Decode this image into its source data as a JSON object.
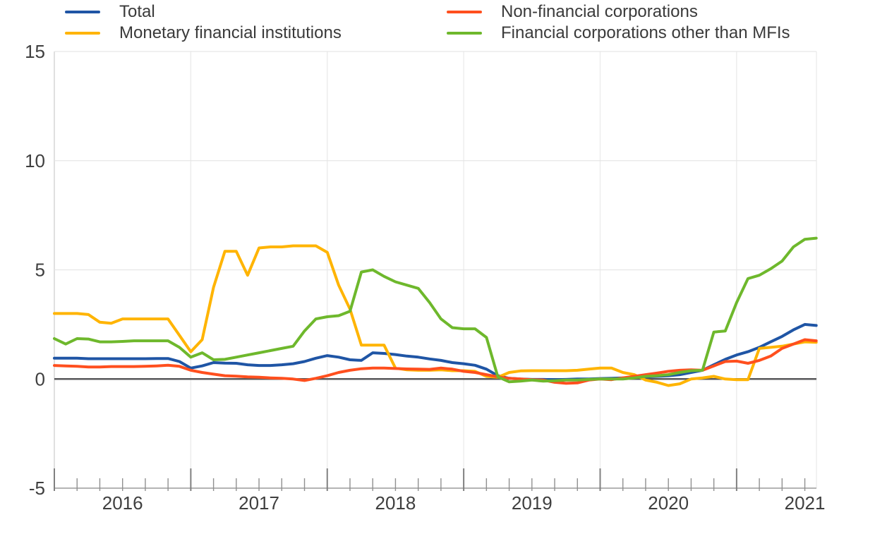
{
  "chart_data": {
    "type": "line",
    "title": "",
    "xlabel": "",
    "ylabel": "",
    "legend_position": "top",
    "grid": "horizontal-light, vertical-year-light, dark-zero-line",
    "xlim": [
      2016.0,
      2021.585
    ],
    "ylim": [
      -5,
      15
    ],
    "y_ticks": [
      15,
      10,
      5,
      0,
      -5
    ],
    "x_tick_years": [
      2016,
      2017,
      2018,
      2019,
      2020,
      2021
    ],
    "x_minor_tick_months": 2,
    "x_start_year": 2016,
    "x_step_months": 1,
    "colors": {
      "axis_line": "#b4b4b4",
      "tick": "#808080",
      "grid_light": "#e6e6e6",
      "grid_vertical": "#ececec",
      "zero_line": "#58585a",
      "text": "#3f3f3f"
    },
    "series": [
      {
        "name": "Total",
        "color": "#1f55a5",
        "values": [
          0.95,
          0.95,
          0.95,
          0.93,
          0.93,
          0.93,
          0.93,
          0.93,
          0.93,
          0.94,
          0.94,
          0.8,
          0.5,
          0.6,
          0.75,
          0.73,
          0.72,
          0.65,
          0.62,
          0.62,
          0.65,
          0.7,
          0.8,
          0.95,
          1.07,
          1.0,
          0.88,
          0.85,
          1.2,
          1.17,
          1.12,
          1.05,
          1.0,
          0.92,
          0.85,
          0.75,
          0.7,
          0.63,
          0.45,
          0.15,
          0.03,
          0.0,
          -0.02,
          -0.02,
          -0.03,
          -0.02,
          0.0,
          0.0,
          0.02,
          0.03,
          0.05,
          0.07,
          0.1,
          0.12,
          0.15,
          0.2,
          0.3,
          0.4,
          0.65,
          0.9,
          1.1,
          1.25,
          1.45,
          1.7,
          1.95,
          2.25,
          2.5,
          2.45
        ]
      },
      {
        "name": "Monetary financial institutions",
        "color": "#ffb400",
        "values": [
          3.0,
          3.0,
          3.0,
          2.95,
          2.6,
          2.55,
          2.75,
          2.75,
          2.75,
          2.75,
          2.75,
          2.0,
          1.25,
          1.8,
          4.2,
          5.85,
          5.85,
          4.75,
          6.0,
          6.05,
          6.05,
          6.1,
          6.1,
          6.1,
          5.8,
          4.3,
          3.2,
          1.55,
          1.55,
          1.55,
          0.5,
          0.42,
          0.4,
          0.4,
          0.42,
          0.38,
          0.38,
          0.35,
          0.12,
          0.08,
          0.3,
          0.37,
          0.38,
          0.38,
          0.38,
          0.38,
          0.4,
          0.45,
          0.5,
          0.5,
          0.3,
          0.2,
          -0.05,
          -0.15,
          -0.3,
          -0.22,
          0.0,
          0.05,
          0.12,
          0.0,
          -0.03,
          -0.03,
          1.4,
          1.45,
          1.5,
          1.6,
          1.7,
          1.68
        ]
      },
      {
        "name": "Non-financial corporations",
        "color": "#ff4f1e",
        "values": [
          0.62,
          0.6,
          0.58,
          0.55,
          0.55,
          0.57,
          0.57,
          0.57,
          0.58,
          0.6,
          0.63,
          0.58,
          0.4,
          0.3,
          0.22,
          0.15,
          0.13,
          0.1,
          0.08,
          0.05,
          0.03,
          0.0,
          -0.07,
          0.03,
          0.15,
          0.3,
          0.4,
          0.47,
          0.5,
          0.5,
          0.48,
          0.46,
          0.45,
          0.44,
          0.5,
          0.45,
          0.35,
          0.3,
          0.2,
          0.1,
          0.03,
          0.0,
          -0.03,
          -0.05,
          -0.15,
          -0.2,
          -0.18,
          -0.05,
          0.0,
          -0.03,
          0.05,
          0.12,
          0.2,
          0.27,
          0.35,
          0.4,
          0.42,
          0.4,
          0.6,
          0.8,
          0.82,
          0.72,
          0.85,
          1.05,
          1.4,
          1.6,
          1.8,
          1.75
        ]
      },
      {
        "name": "Financial corporations other than MFIs",
        "color": "#6eb82c",
        "values": [
          1.85,
          1.6,
          1.85,
          1.83,
          1.7,
          1.7,
          1.72,
          1.75,
          1.75,
          1.75,
          1.75,
          1.45,
          1.0,
          1.2,
          0.88,
          0.9,
          1.0,
          1.1,
          1.2,
          1.3,
          1.4,
          1.5,
          2.2,
          2.75,
          2.85,
          2.9,
          3.1,
          4.9,
          5.0,
          4.7,
          4.45,
          4.3,
          4.15,
          3.5,
          2.75,
          2.35,
          2.3,
          2.3,
          1.9,
          0.1,
          -0.13,
          -0.1,
          -0.05,
          -0.1,
          -0.08,
          -0.05,
          -0.05,
          -0.02,
          0.0,
          0.0,
          0.0,
          0.05,
          0.12,
          0.15,
          0.2,
          0.3,
          0.38,
          0.4,
          2.15,
          2.2,
          3.5,
          4.6,
          4.75,
          5.05,
          5.4,
          6.05,
          6.4,
          6.45
        ]
      }
    ]
  },
  "legend": {
    "items": [
      {
        "label": "Total",
        "series_index": 0
      },
      {
        "label": "Monetary financial institutions",
        "series_index": 1
      },
      {
        "label": "Non-financial corporations",
        "series_index": 2
      },
      {
        "label": "Financial corporations other than MFIs",
        "series_index": 3
      }
    ]
  }
}
